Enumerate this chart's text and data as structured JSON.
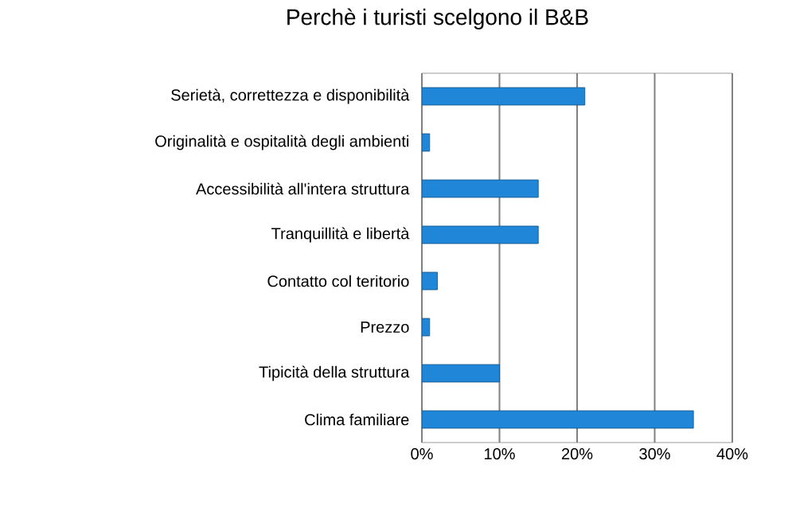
{
  "chart_data": {
    "type": "bar",
    "orientation": "horizontal",
    "title": "Perchè i turisti scelgono il B&B",
    "categories": [
      "Serietà, correttezza e disponibilità",
      "Originalità e ospitalità degli ambienti",
      "Accessibilità all'intera struttura",
      "Tranquillità e libertà",
      "Contatto col teritorio",
      "Prezzo",
      "Tipicità della struttura",
      "Clima familiare"
    ],
    "values": [
      21,
      1,
      15,
      15,
      2,
      1,
      10,
      35
    ],
    "color": "#2086d8",
    "xlim": [
      0,
      40
    ],
    "xticks": [
      {
        "value": 0,
        "label": "0%"
      },
      {
        "value": 10,
        "label": "10%"
      },
      {
        "value": 20,
        "label": "20%"
      },
      {
        "value": 30,
        "label": "30%"
      },
      {
        "value": 40,
        "label": "40%"
      }
    ],
    "grid": "x"
  }
}
